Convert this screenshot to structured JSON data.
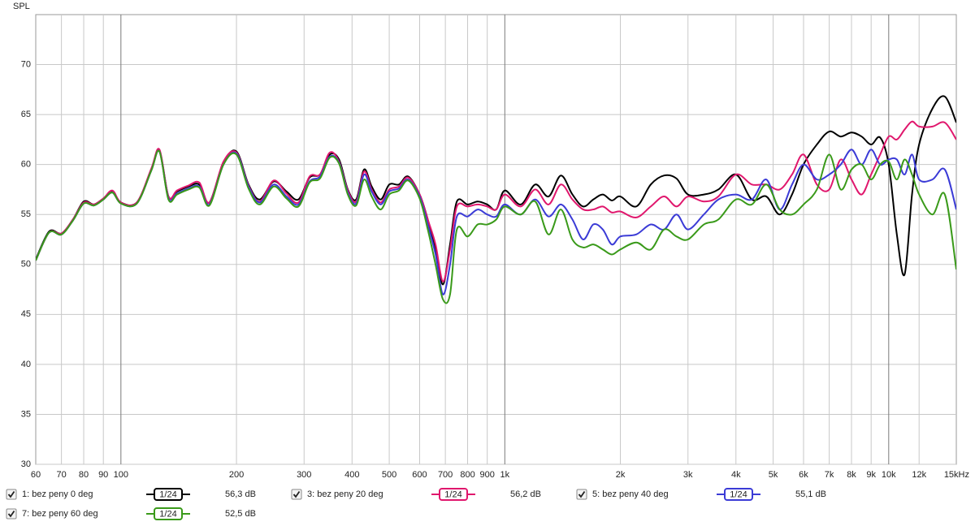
{
  "chart_data": {
    "type": "line",
    "y_label": "SPL",
    "log_x": true,
    "grid": true,
    "xlim": [
      60,
      15000
    ],
    "ylim": [
      30,
      75
    ],
    "yticks": [
      30,
      35,
      40,
      45,
      50,
      55,
      60,
      65,
      70
    ],
    "xticks": [
      60,
      70,
      80,
      90,
      100,
      200,
      300,
      400,
      500,
      600,
      700,
      800,
      900,
      {
        "value": 1000,
        "label": "1k"
      },
      {
        "value": 2000,
        "label": "2k"
      },
      {
        "value": 3000,
        "label": "3k"
      },
      {
        "value": 4000,
        "label": "4k"
      },
      {
        "value": 5000,
        "label": "5k"
      },
      {
        "value": 6000,
        "label": "6k"
      },
      {
        "value": 7000,
        "label": "7k"
      },
      {
        "value": 8000,
        "label": "8k"
      },
      {
        "value": 9000,
        "label": "9k"
      },
      {
        "value": 10000,
        "label": "10k"
      },
      {
        "value": 12000,
        "label": "12k",
        "color": "#999999"
      },
      {
        "value": 15000,
        "label": "15kHz"
      }
    ],
    "x": [
      60,
      65,
      70,
      75,
      80,
      85,
      90,
      95,
      100,
      110,
      120,
      126,
      133,
      140,
      150,
      160,
      170,
      185,
      200,
      215,
      230,
      250,
      270,
      290,
      310,
      330,
      350,
      370,
      390,
      410,
      430,
      450,
      475,
      500,
      530,
      560,
      600,
      630,
      660,
      690,
      720,
      750,
      800,
      850,
      900,
      950,
      1000,
      1100,
      1200,
      1300,
      1400,
      1500,
      1600,
      1700,
      1800,
      1900,
      2000,
      2200,
      2400,
      2600,
      2800,
      3000,
      3300,
      3600,
      4000,
      4400,
      4800,
      5200,
      5600,
      6000,
      6500,
      7000,
      7500,
      8000,
      8500,
      9000,
      9500,
      10000,
      10500,
      11000,
      11500,
      12000,
      13000,
      14000,
      15000
    ],
    "series": [
      {
        "name": "1: bez peny 0 deg",
        "color": "#000000",
        "smoothing": "1/24",
        "level": "56,3 dB",
        "values": [
          50.5,
          53.3,
          53.1,
          54.5,
          56.3,
          56,
          56.6,
          57.3,
          56.2,
          56.2,
          59.5,
          61.4,
          56.8,
          57.3,
          57.8,
          58,
          56.2,
          60.2,
          61.3,
          58,
          56.5,
          58.3,
          57.3,
          56.5,
          58.7,
          59,
          61,
          60.5,
          57.5,
          56.5,
          59.5,
          57.8,
          56.5,
          58,
          58,
          58.8,
          57,
          54.5,
          51.5,
          48,
          52,
          56.3,
          56,
          56.3,
          56,
          55.5,
          57.4,
          56,
          58,
          56.8,
          58.9,
          57,
          55.8,
          56.5,
          57,
          56.4,
          56.8,
          55.8,
          58,
          58.9,
          58.6,
          57,
          57,
          57.5,
          59,
          56.5,
          56.8,
          55,
          57,
          60,
          62,
          63.3,
          62.8,
          63.2,
          62.8,
          62,
          62.7,
          60,
          53,
          49,
          57,
          62,
          65.6,
          66.8,
          64.2
        ]
      },
      {
        "name": "3: bez peny 20 deg",
        "color": "#e0176d",
        "smoothing": "1/24",
        "level": "56,2 dB",
        "values": [
          50.4,
          53.2,
          53.1,
          54.5,
          56.2,
          56,
          56.6,
          57.4,
          56.2,
          56.2,
          59.6,
          61.5,
          56.8,
          57.4,
          57.9,
          58.2,
          56.2,
          60.3,
          61.2,
          57.9,
          56.3,
          58.4,
          57.1,
          56.2,
          58.8,
          59,
          61.2,
          60.3,
          57.4,
          56.3,
          59.3,
          57.5,
          56.2,
          57.5,
          57.8,
          58.7,
          57,
          54.5,
          52,
          48.3,
          51.5,
          55.8,
          55.8,
          56,
          55.8,
          55.5,
          57,
          55.8,
          57.5,
          56,
          58,
          56.5,
          55.5,
          55.5,
          55.8,
          55.2,
          55.3,
          54.7,
          55.8,
          56.8,
          55.8,
          56.8,
          56.3,
          56.8,
          59,
          58,
          58,
          57.5,
          59,
          61,
          58,
          57.5,
          60.5,
          58.5,
          57,
          59,
          61,
          62.8,
          62.5,
          63.5,
          64.3,
          63.8,
          63.8,
          64.2,
          62.5
        ]
      },
      {
        "name": "5: bez peny 40 deg",
        "color": "#3b3bd6",
        "smoothing": "1/24",
        "level": "55,1 dB",
        "values": [
          50.4,
          53.2,
          53,
          54.4,
          56.1,
          55.9,
          56.5,
          57.2,
          56.1,
          56.1,
          59.4,
          61.3,
          56.6,
          57.1,
          57.6,
          57.8,
          56,
          60,
          61.1,
          57.8,
          56.2,
          58,
          56.8,
          56,
          58.3,
          58.8,
          60.8,
          60.2,
          57.2,
          56.1,
          59,
          57.3,
          56,
          57.3,
          57.6,
          58.5,
          56.8,
          54,
          51,
          47,
          50,
          54.8,
          54.8,
          55.5,
          55,
          54.8,
          56,
          55,
          56.5,
          54.8,
          56,
          54.5,
          52.5,
          54,
          53.5,
          52,
          52.8,
          53,
          54,
          53.5,
          55,
          53.5,
          55,
          56.5,
          57,
          56.5,
          58.5,
          55.5,
          58,
          60,
          58.5,
          59,
          60,
          61.5,
          60,
          61.5,
          60,
          60.5,
          60.5,
          59,
          61,
          58.5,
          58.5,
          59.5,
          55.5
        ]
      },
      {
        "name": "7: bez peny 60 deg",
        "color": "#3a9a1a",
        "smoothing": "1/24",
        "level": "52,5 dB",
        "values": [
          50.4,
          53.2,
          53,
          54.4,
          56.1,
          55.9,
          56.5,
          57.2,
          56.1,
          56.1,
          59.4,
          61.3,
          56.5,
          57,
          57.5,
          57.7,
          55.9,
          60,
          61,
          57.6,
          56,
          57.8,
          56.6,
          55.8,
          58.2,
          58.6,
          60.7,
          60.1,
          57,
          55.9,
          58.5,
          56.8,
          55.5,
          57,
          57.4,
          58.4,
          56.6,
          53.5,
          50,
          46.5,
          47,
          53.5,
          52.8,
          54,
          54,
          54.5,
          55.8,
          55,
          56.3,
          53,
          55.5,
          52.5,
          51.7,
          52,
          51.5,
          51,
          51.5,
          52.2,
          51.5,
          53.5,
          52.8,
          52.5,
          54,
          54.5,
          56.5,
          56,
          58,
          55.5,
          55,
          56,
          57.5,
          61,
          57.5,
          59.5,
          60,
          58.5,
          60,
          60.3,
          58.5,
          60.5,
          59,
          57,
          55,
          57,
          49.5
        ]
      }
    ]
  }
}
